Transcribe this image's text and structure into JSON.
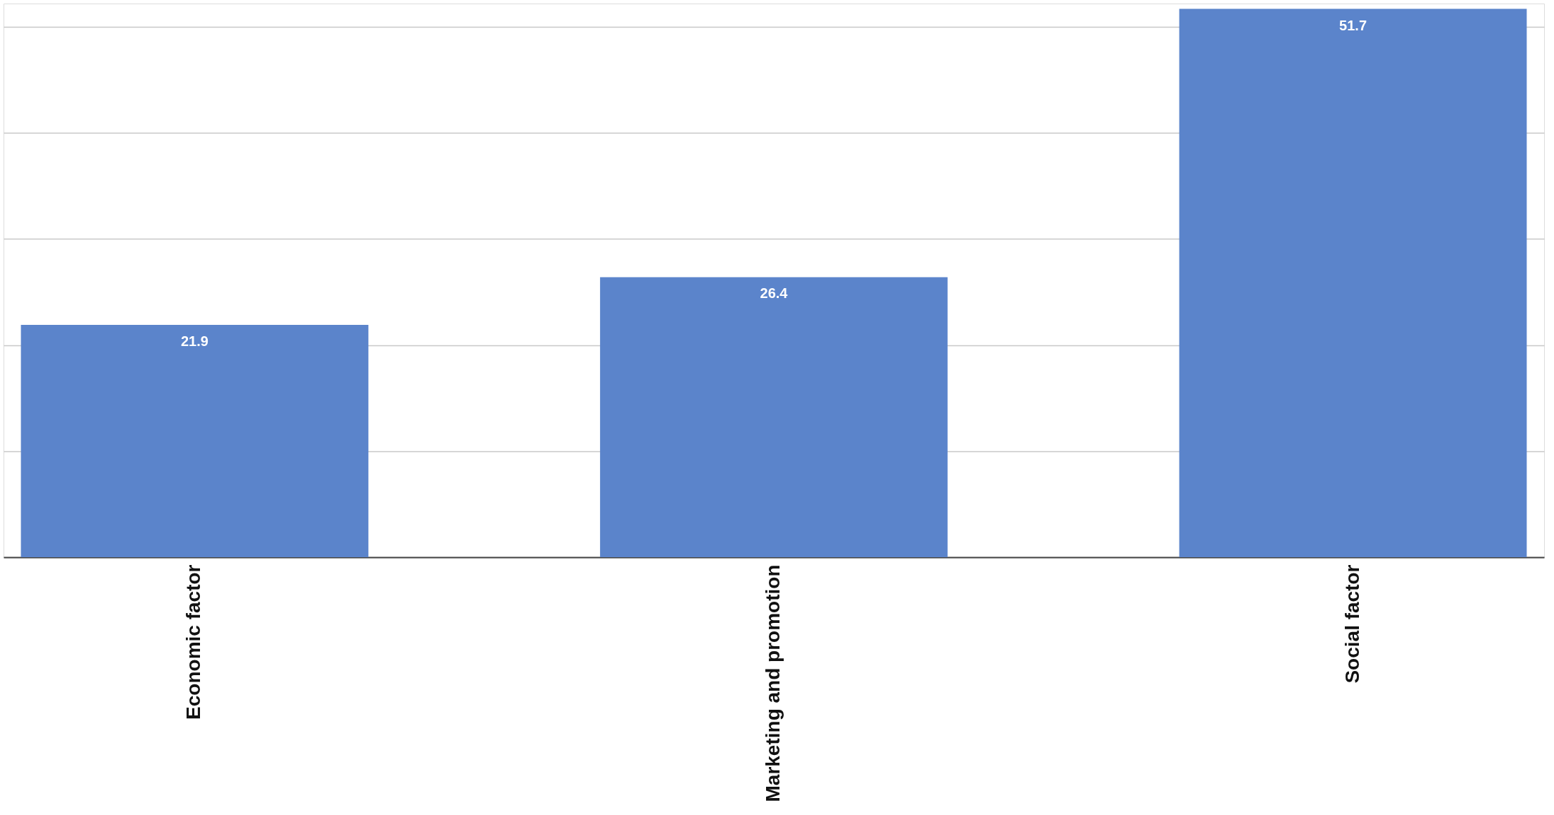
{
  "chart_data": {
    "type": "bar",
    "categories": [
      "Economic factor",
      "Marketing and promotion",
      "Social factor"
    ],
    "values": [
      21.9,
      26.4,
      51.7
    ],
    "color": "#5b84cb",
    "ylim": [
      0,
      52.2
    ],
    "yticks": [
      {
        "value": 0,
        "label": null
      },
      {
        "value": 10,
        "label": null
      },
      {
        "value": 20,
        "label": null
      },
      {
        "value": 30,
        "label": null
      },
      {
        "value": 40,
        "label": null
      },
      {
        "value": 50,
        "label": null
      }
    ],
    "tick_labels": "x",
    "grid": "y",
    "data_labels": true
  }
}
